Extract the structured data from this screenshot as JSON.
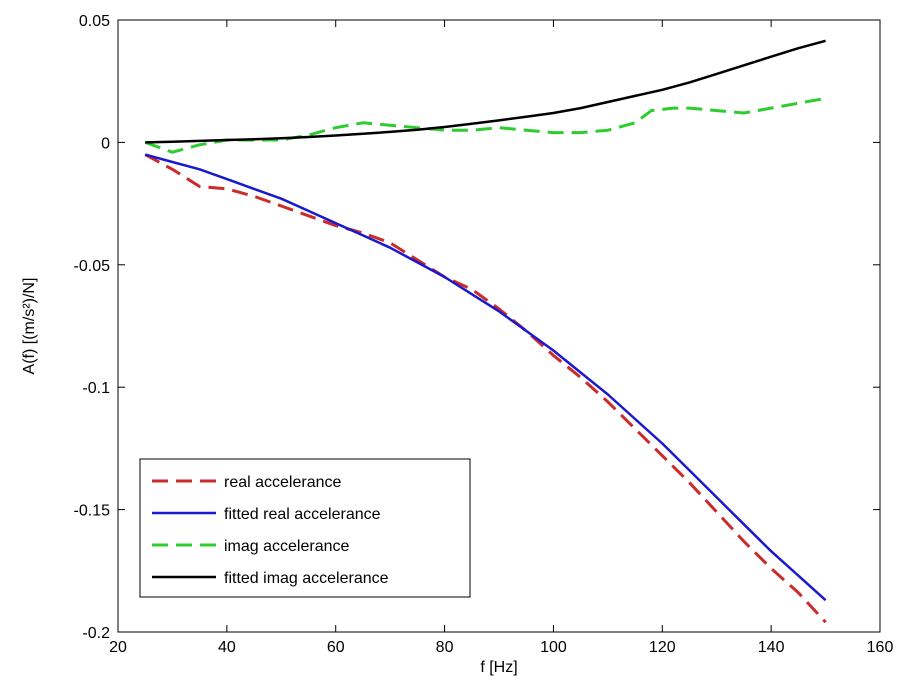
{
  "chart_data": {
    "type": "line",
    "title": "",
    "xlabel": "f [Hz]",
    "ylabel": "A(f) [(m/s²)/N]",
    "xlim": [
      20,
      160
    ],
    "ylim": [
      -0.2,
      0.05
    ],
    "xticks": [
      20,
      40,
      60,
      80,
      100,
      120,
      140,
      160
    ],
    "xtick_labels": [
      "20",
      "40",
      "60",
      "80",
      "100",
      "120",
      "140",
      "160"
    ],
    "yticks": [
      -0.2,
      -0.15,
      -0.1,
      -0.05,
      0,
      0.05
    ],
    "ytick_labels": [
      "-0.2",
      "-0.15",
      "-0.1",
      "-0.05",
      "0",
      "0.05"
    ],
    "grid": false,
    "legend_position": "bottom-left",
    "series": [
      {
        "name": "real accelerance",
        "color": "#cc2b2b",
        "dash": "dashed",
        "x": [
          25,
          30,
          35,
          40,
          45,
          50,
          55,
          60,
          65,
          70,
          75,
          80,
          85,
          90,
          95,
          100,
          105,
          110,
          115,
          120,
          125,
          130,
          135,
          140,
          145,
          150
        ],
        "y": [
          -0.005,
          -0.011,
          -0.018,
          -0.019,
          -0.022,
          -0.026,
          -0.03,
          -0.034,
          -0.037,
          -0.041,
          -0.048,
          -0.055,
          -0.06,
          -0.068,
          -0.077,
          -0.087,
          -0.096,
          -0.106,
          -0.117,
          -0.128,
          -0.139,
          -0.151,
          -0.163,
          -0.174,
          -0.184,
          -0.196
        ]
      },
      {
        "name": "fitted real accelerance",
        "color": "#1a1acc",
        "dash": "solid",
        "x": [
          25,
          30,
          35,
          40,
          45,
          50,
          55,
          60,
          65,
          70,
          75,
          80,
          85,
          90,
          95,
          100,
          105,
          110,
          115,
          120,
          125,
          130,
          135,
          140,
          145,
          150
        ],
        "y": [
          -0.005,
          -0.008,
          -0.011,
          -0.015,
          -0.019,
          -0.023,
          -0.028,
          -0.033,
          -0.038,
          -0.043,
          -0.049,
          -0.055,
          -0.062,
          -0.069,
          -0.077,
          -0.085,
          -0.094,
          -0.103,
          -0.113,
          -0.123,
          -0.134,
          -0.145,
          -0.156,
          -0.167,
          -0.177,
          -0.187
        ]
      },
      {
        "name": "imag accelerance",
        "color": "#2ecc2e",
        "dash": "dashed",
        "x": [
          25,
          30,
          35,
          40,
          45,
          50,
          55,
          60,
          65,
          70,
          75,
          80,
          85,
          90,
          95,
          100,
          105,
          110,
          115,
          118,
          122,
          125,
          130,
          135,
          140,
          145,
          150
        ],
        "y": [
          0.0,
          -0.004,
          -0.001,
          0.001,
          0.001,
          0.001,
          0.003,
          0.006,
          0.008,
          0.007,
          0.006,
          0.005,
          0.005,
          0.006,
          0.005,
          0.004,
          0.004,
          0.005,
          0.008,
          0.013,
          0.014,
          0.014,
          0.013,
          0.012,
          0.014,
          0.016,
          0.018
        ]
      },
      {
        "name": "fitted imag accelerance",
        "color": "#000000",
        "dash": "solid",
        "x": [
          25,
          30,
          35,
          40,
          45,
          50,
          55,
          60,
          65,
          70,
          75,
          80,
          85,
          90,
          95,
          100,
          105,
          110,
          115,
          120,
          125,
          130,
          135,
          140,
          145,
          150
        ],
        "y": [
          0.0,
          0.0003,
          0.0006,
          0.001,
          0.0013,
          0.0017,
          0.0022,
          0.0028,
          0.0035,
          0.0043,
          0.0052,
          0.0063,
          0.0076,
          0.009,
          0.0105,
          0.012,
          0.014,
          0.0165,
          0.019,
          0.0215,
          0.0245,
          0.028,
          0.0315,
          0.035,
          0.0385,
          0.0415
        ]
      }
    ]
  }
}
